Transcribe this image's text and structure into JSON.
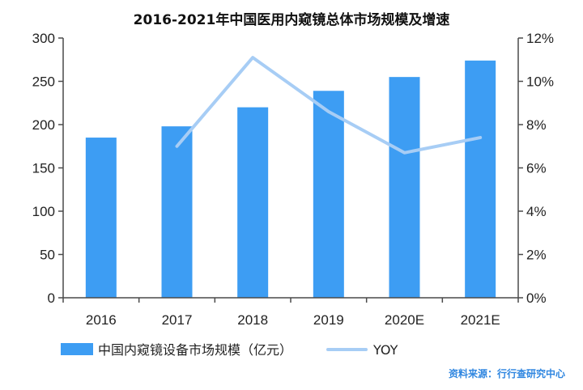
{
  "chart_data": {
    "type": "bar",
    "title": "2016-2021年中国医用内窥镜总体市场规模及增速",
    "categories": [
      "2016",
      "2017",
      "2018",
      "2019",
      "2020E",
      "2021E"
    ],
    "series": [
      {
        "name": "中国内窥镜设备市场规模（亿元）",
        "type": "bar",
        "axis": "left",
        "values": [
          185,
          198,
          220,
          239,
          255,
          274
        ]
      },
      {
        "name": "YOY",
        "type": "line",
        "axis": "right",
        "values": [
          null,
          7.0,
          11.1,
          8.6,
          6.7,
          7.4
        ]
      }
    ],
    "y_left": {
      "min": 0,
      "max": 300,
      "ticks": [
        "0",
        "50",
        "100",
        "150",
        "200",
        "250",
        "300"
      ]
    },
    "y_right": {
      "min": 0,
      "max": 12,
      "ticks": [
        "0%",
        "2%",
        "4%",
        "6%",
        "8%",
        "10%",
        "12%"
      ]
    },
    "grid": false,
    "legend": "bottom-left",
    "colors": {
      "bar": "#3d9df3",
      "line": "#a7cdf5",
      "axis": "#4a4a4a"
    }
  },
  "source_note": "资料来源：行行查研究中心"
}
